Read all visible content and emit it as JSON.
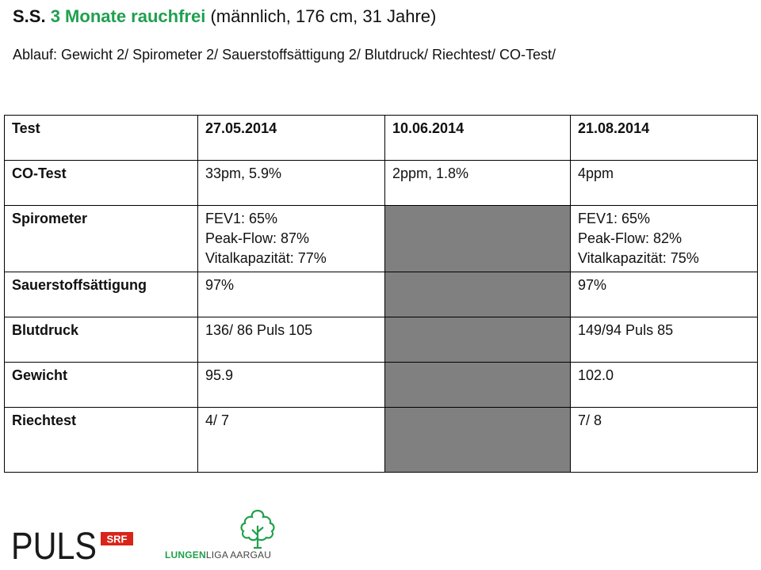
{
  "header": {
    "initials": "S.S.",
    "highlight": "3 Monate rauchfrei",
    "details": "(männlich, 176 cm, 31 Jahre)",
    "subtitle": "Ablauf: Gewicht 2/ Spirometer 2/ Sauerstoffsättigung 2/ Blutdruck/ Riechtest/ CO-Test/"
  },
  "table": {
    "headers": [
      "Test",
      "27.05.2014",
      "10.06.2014",
      "21.08.2014"
    ],
    "rows": [
      {
        "label": "CO-Test",
        "cells": [
          [
            "33pm, 5.9%"
          ],
          [
            "2ppm,  1.8%"
          ],
          [
            "4ppm"
          ]
        ]
      },
      {
        "label": "Spirometer",
        "cells": [
          [
            "FEV1: 65%",
            "Peak-Flow: 87%",
            "Vitalkapazität: 77%"
          ],
          [],
          [
            "FEV1: 65%",
            "Peak-Flow: 82%",
            "Vitalkapazität: 75%"
          ]
        ]
      },
      {
        "label": "Sauerstoffsättigung",
        "cells": [
          [
            "97%"
          ],
          [],
          [
            "97%"
          ]
        ]
      },
      {
        "label": "Blutdruck",
        "cells": [
          [
            "136/ 86 Puls 105"
          ],
          [],
          [
            "149/94 Puls 85"
          ]
        ]
      },
      {
        "label": "Gewicht",
        "cells": [
          [
            "95.9"
          ],
          [],
          [
            "102.0"
          ]
        ]
      },
      {
        "label": "Riechtest",
        "cells": [
          [
            "4/ 7"
          ],
          [],
          [
            "7/ 8"
          ]
        ]
      }
    ]
  },
  "logos": {
    "puls": "PULS",
    "srf": "SRF",
    "lungenliga_bold": "LUNGEN",
    "lungenliga_rest": "LIGA AARGAU"
  },
  "colors": {
    "highlight": "#20a050",
    "blank_cell": "#808080",
    "srf_red": "#d9241b",
    "lungenliga_green": "#21a04a"
  }
}
